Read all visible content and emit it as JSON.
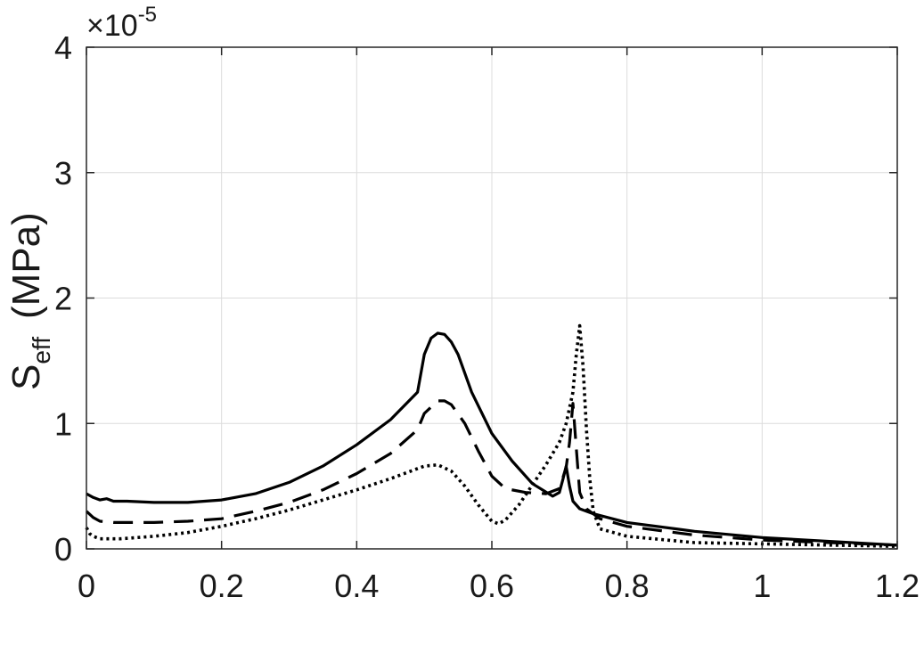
{
  "chart_data": {
    "type": "line",
    "title": "",
    "xlabel": "",
    "ylabel": "S",
    "ylabel_subscript": "eff",
    "ylabel_unit": "(MPa)",
    "y_exponent_base": "×10",
    "y_exponent_power": "-5",
    "xlim": [
      0,
      1.2
    ],
    "ylim": [
      0,
      4
    ],
    "grid": true,
    "legend": "none",
    "x_ticks": [
      0,
      0.2,
      0.4,
      0.6,
      0.8,
      1,
      1.2
    ],
    "x_tick_labels": [
      "0",
      "0.2",
      "0.4",
      "0.6",
      "0.8",
      "1",
      "1.2"
    ],
    "y_ticks": [
      0,
      1,
      2,
      3,
      4
    ],
    "y_tick_labels": [
      "0",
      "1",
      "2",
      "3",
      "4"
    ],
    "colors": {
      "line": "#000000",
      "grid": "#dcdcdc",
      "axis": "#262626"
    },
    "series": [
      {
        "style": "solid",
        "x": [
          0,
          0.01,
          0.02,
          0.03,
          0.04,
          0.06,
          0.1,
          0.15,
          0.2,
          0.25,
          0.3,
          0.35,
          0.4,
          0.45,
          0.49,
          0.5,
          0.51,
          0.52,
          0.53,
          0.54,
          0.55,
          0.57,
          0.6,
          0.63,
          0.66,
          0.69,
          0.7,
          0.705,
          0.71,
          0.715,
          0.72,
          0.73,
          0.75,
          0.8,
          0.9,
          1.0,
          1.1,
          1.2
        ],
        "y": [
          0.44,
          0.41,
          0.39,
          0.4,
          0.38,
          0.38,
          0.37,
          0.37,
          0.39,
          0.44,
          0.53,
          0.66,
          0.83,
          1.03,
          1.25,
          1.55,
          1.68,
          1.72,
          1.71,
          1.65,
          1.55,
          1.25,
          0.92,
          0.7,
          0.52,
          0.42,
          0.45,
          0.55,
          0.66,
          0.5,
          0.38,
          0.32,
          0.28,
          0.21,
          0.14,
          0.09,
          0.06,
          0.03
        ]
      },
      {
        "style": "dashed",
        "x": [
          0,
          0.01,
          0.02,
          0.04,
          0.1,
          0.15,
          0.2,
          0.25,
          0.3,
          0.35,
          0.4,
          0.45,
          0.49,
          0.5,
          0.52,
          0.53,
          0.54,
          0.56,
          0.58,
          0.6,
          0.62,
          0.65,
          0.68,
          0.7,
          0.71,
          0.715,
          0.72,
          0.725,
          0.73,
          0.74,
          0.76,
          0.8,
          0.9,
          1.0,
          1.1,
          1.2
        ],
        "y": [
          0.3,
          0.25,
          0.22,
          0.21,
          0.21,
          0.22,
          0.24,
          0.3,
          0.37,
          0.47,
          0.6,
          0.76,
          0.95,
          1.08,
          1.18,
          1.18,
          1.15,
          1.0,
          0.78,
          0.58,
          0.48,
          0.45,
          0.44,
          0.48,
          0.65,
          0.85,
          1.16,
          0.8,
          0.45,
          0.32,
          0.24,
          0.18,
          0.11,
          0.07,
          0.05,
          0.03
        ]
      },
      {
        "style": "dotted",
        "x": [
          0,
          0.005,
          0.01,
          0.02,
          0.05,
          0.1,
          0.15,
          0.2,
          0.25,
          0.3,
          0.35,
          0.4,
          0.45,
          0.5,
          0.52,
          0.54,
          0.56,
          0.58,
          0.6,
          0.61,
          0.62,
          0.64,
          0.66,
          0.68,
          0.7,
          0.71,
          0.72,
          0.725,
          0.73,
          0.735,
          0.74,
          0.745,
          0.75,
          0.76,
          0.8,
          0.9,
          1.0,
          1.1,
          1.2
        ],
        "y": [
          0.17,
          0.12,
          0.1,
          0.08,
          0.08,
          0.1,
          0.13,
          0.18,
          0.24,
          0.31,
          0.39,
          0.47,
          0.56,
          0.66,
          0.67,
          0.62,
          0.5,
          0.35,
          0.22,
          0.2,
          0.23,
          0.35,
          0.51,
          0.67,
          0.85,
          1.0,
          1.25,
          1.55,
          1.78,
          1.45,
          0.95,
          0.55,
          0.3,
          0.16,
          0.1,
          0.05,
          0.04,
          0.03,
          0.02
        ]
      }
    ]
  }
}
